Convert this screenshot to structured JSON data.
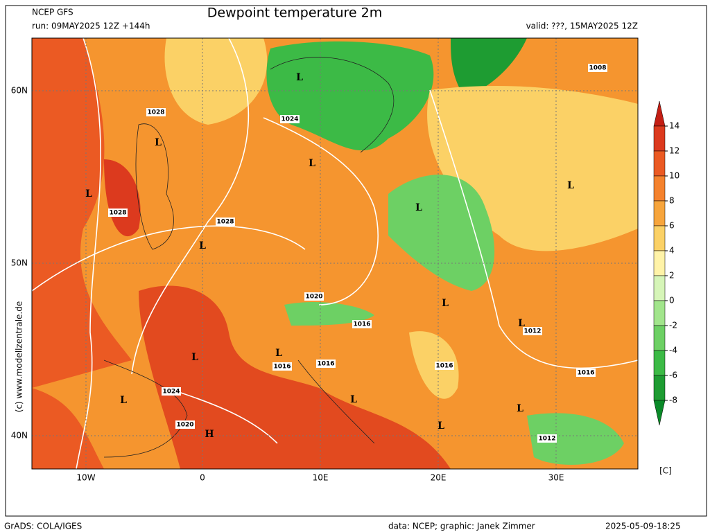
{
  "header": {
    "model": "NCEP GFS",
    "run": "run: 09MAY2025 12Z +144h",
    "title": "Dewpoint temperature 2m",
    "valid": "valid: ???, 15MAY2025 12Z"
  },
  "map": {
    "lat_labels": [
      "60N",
      "50N",
      "40N"
    ],
    "lon_labels": [
      "10W",
      "0",
      "10E",
      "20E",
      "30E"
    ],
    "pressure_labels": [
      "1008",
      "1028",
      "1024",
      "1028",
      "1028",
      "1020",
      "1016",
      "1012",
      "1016",
      "1016",
      "1016",
      "1016",
      "1024",
      "1020",
      "1012"
    ],
    "markers": [
      "L",
      "L",
      "L",
      "L",
      "L",
      "L",
      "L",
      "L",
      "L",
      "L",
      "L",
      "L",
      "L",
      "L",
      "L",
      "H"
    ]
  },
  "colorbar": {
    "ticks": [
      14,
      12,
      10,
      8,
      6,
      4,
      2,
      0,
      -2,
      -4,
      -6,
      -8
    ],
    "colors": [
      "#c41e14",
      "#dc3a1e",
      "#eb5a23",
      "#f5822d",
      "#f7a53c",
      "#fbd166",
      "#fff3a8",
      "#d6f5b8",
      "#a2e58c",
      "#6dd064",
      "#3cba46",
      "#1e9c32",
      "#0a8a28"
    ],
    "unit": "[C]"
  },
  "credit": "(c) www.modellzentrale.de",
  "footer": {
    "software": "GrADS: COLA/IGES",
    "source": "data: NCEP; graphic: Janek Zimmer",
    "timestamp": "2025-05-09-18:25"
  }
}
